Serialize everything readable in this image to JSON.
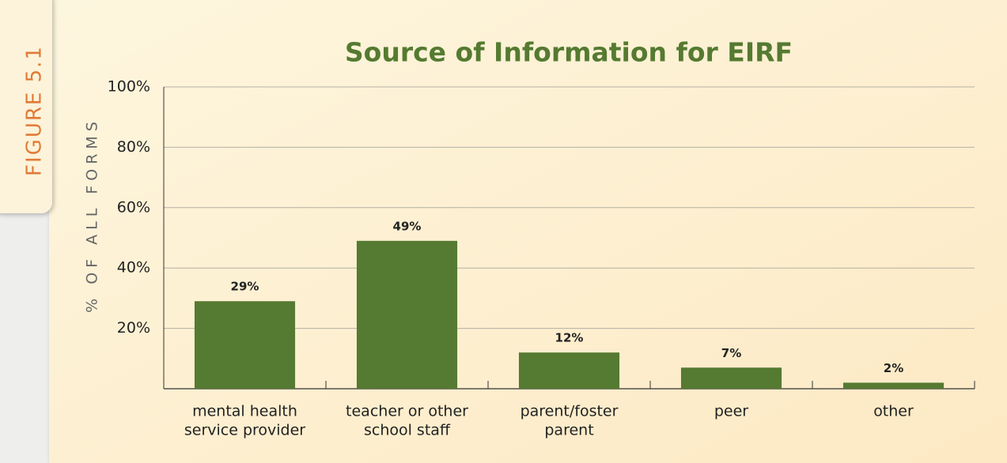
{
  "chart_data": {
    "type": "bar",
    "figure_label": "FIGURE 5.1",
    "title": "Source of Information for EIRF",
    "y_label": "% OF ALL FORMS",
    "categories": [
      [
        "mental health",
        "service provider"
      ],
      [
        "teacher or other",
        "school staff"
      ],
      [
        "parent/foster",
        "parent"
      ],
      [
        "peer"
      ],
      [
        "other"
      ]
    ],
    "values": [
      29,
      49,
      12,
      7,
      2
    ],
    "value_labels": [
      "29%",
      "49%",
      "12%",
      "7%",
      "2%"
    ],
    "color": "#557a31",
    "ylim": [
      0,
      100
    ],
    "yticks": [
      {
        "value": 20,
        "label": "20%"
      },
      {
        "value": 40,
        "label": "40%"
      },
      {
        "value": 60,
        "label": "60%"
      },
      {
        "value": 80,
        "label": "80%"
      },
      {
        "value": 100,
        "label": "100%"
      }
    ],
    "grid": true
  }
}
